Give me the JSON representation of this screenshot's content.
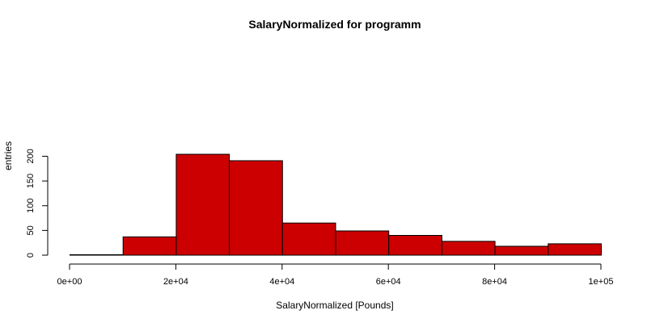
{
  "chart_data": {
    "type": "bar",
    "title": "SalaryNormalized for programm",
    "xlabel": "SalaryNormalized [Pounds]",
    "ylabel": "entries",
    "bin_edges": [
      0,
      10000,
      20000,
      30000,
      40000,
      50000,
      60000,
      70000,
      80000,
      90000,
      100000
    ],
    "values": [
      1,
      37,
      204,
      191,
      65,
      49,
      40,
      28,
      18,
      23
    ],
    "xlim": [
      0,
      100000
    ],
    "ylim": [
      0,
      210
    ],
    "x_ticks": [
      0,
      20000,
      40000,
      60000,
      80000,
      100000
    ],
    "x_tick_labels": [
      "0e+00",
      "2e+04",
      "4e+04",
      "6e+04",
      "8e+04",
      "1e+05"
    ],
    "y_ticks": [
      0,
      50,
      100,
      150,
      200
    ],
    "y_tick_labels": [
      "0",
      "50",
      "100",
      "150",
      "200"
    ],
    "bar_color": "#cc0000",
    "grid": false,
    "legend": "none"
  }
}
